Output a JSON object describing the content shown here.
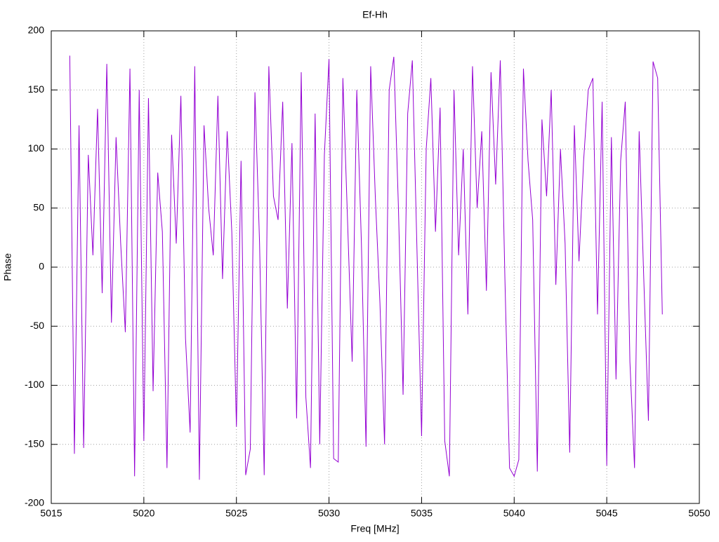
{
  "chart_data": {
    "type": "line",
    "title": "Ef-Hh",
    "x_label": "Freq [MHz]",
    "y_label": "Phase",
    "x": [
      5016,
      5016.25,
      5016.5,
      5016.75,
      5017,
      5017.25,
      5017.5,
      5017.75,
      5018,
      5018.25,
      5018.5,
      5018.75,
      5019,
      5019.25,
      5019.5,
      5019.75,
      5020,
      5020.25,
      5020.5,
      5020.75,
      5021,
      5021.25,
      5021.5,
      5021.75,
      5022,
      5022.25,
      5022.5,
      5022.75,
      5023,
      5023.25,
      5023.5,
      5023.75,
      5024,
      5024.25,
      5024.5,
      5024.75,
      5025,
      5025.25,
      5025.5,
      5025.75,
      5026,
      5026.25,
      5026.5,
      5026.75,
      5027,
      5027.25,
      5027.5,
      5027.75,
      5028,
      5028.25,
      5028.5,
      5028.75,
      5029,
      5029.25,
      5029.5,
      5029.75,
      5030,
      5030.25,
      5030.5,
      5030.75,
      5031,
      5031.25,
      5031.5,
      5031.75,
      5032,
      5032.25,
      5032.5,
      5032.75,
      5033,
      5033.25,
      5033.5,
      5033.75,
      5034,
      5034.25,
      5034.5,
      5034.75,
      5035,
      5035.25,
      5035.5,
      5035.75,
      5036,
      5036.25,
      5036.5,
      5036.75,
      5037,
      5037.25,
      5037.5,
      5037.75,
      5038,
      5038.25,
      5038.5,
      5038.75,
      5039,
      5039.25,
      5039.5,
      5039.75,
      5040,
      5040.25,
      5040.5,
      5040.75,
      5041,
      5041.25,
      5041.5,
      5041.75,
      5042,
      5042.25,
      5042.5,
      5042.75,
      5043,
      5043.25,
      5043.5,
      5043.75,
      5044,
      5044.25,
      5044.5,
      5044.75,
      5045,
      5045.25,
      5045.5,
      5045.75,
      5046,
      5046.25,
      5046.5,
      5046.75,
      5047,
      5047.25,
      5047.5,
      5047.75,
      5048
    ],
    "series": [
      {
        "color": "#9400d3",
        "values": [
          179,
          -158,
          120,
          -153,
          95,
          10,
          134,
          -22,
          172,
          -47,
          110,
          20,
          -55,
          168,
          -177,
          150,
          -147,
          143,
          -105,
          80,
          30,
          -170,
          112,
          20,
          145,
          -60,
          -140,
          170,
          -180,
          120,
          50,
          10,
          145,
          -10,
          115,
          30,
          -135,
          90,
          -176,
          -154,
          148,
          20,
          -176,
          170,
          60,
          40,
          140,
          -35,
          105,
          -128,
          165,
          -110,
          -170,
          130,
          -150,
          95,
          176,
          -162,
          -165,
          160,
          40,
          -80,
          150,
          20,
          -152,
          170,
          60,
          -30,
          -150,
          150,
          178,
          50,
          -108,
          130,
          175,
          15,
          -143,
          100,
          160,
          30,
          135,
          -147,
          -177,
          150,
          10,
          100,
          -40,
          170,
          50,
          115,
          -20,
          165,
          70,
          175,
          -10,
          -170,
          -177,
          -163,
          168,
          90,
          40,
          -173,
          125,
          60,
          150,
          -15,
          100,
          20,
          -157,
          120,
          5,
          90,
          150,
          160,
          -40,
          140,
          -168,
          110,
          -95,
          90,
          140,
          -80,
          -170,
          115,
          -10,
          -130,
          174,
          160,
          -40
        ]
      }
    ],
    "xlim": [
      5015,
      5050
    ],
    "xticks": [
      5015,
      5020,
      5025,
      5030,
      5035,
      5040,
      5045,
      5050
    ],
    "ylim": [
      -200,
      200
    ],
    "yticks": [
      -200,
      -150,
      -100,
      -50,
      0,
      50,
      100,
      150,
      200
    ],
    "grid": true
  }
}
